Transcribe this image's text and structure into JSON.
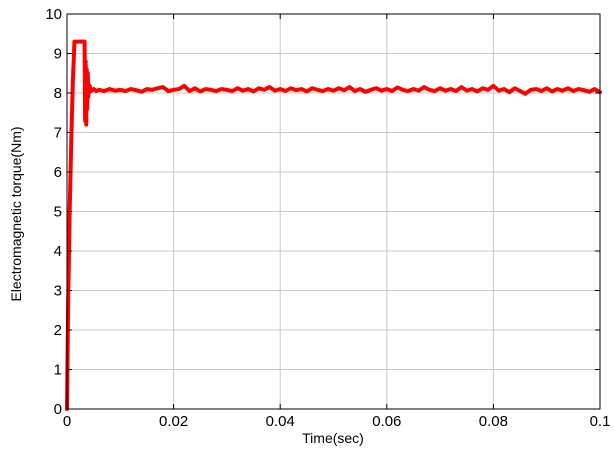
{
  "chart_data": {
    "type": "line",
    "title": "",
    "xlabel": "Time(sec)",
    "ylabel": "Electromagnetic torque(Nm)",
    "xlim": [
      0,
      0.1
    ],
    "ylim": [
      0,
      10
    ],
    "xticks": [
      0,
      0.02,
      0.04,
      0.06,
      0.08,
      0.1
    ],
    "xtick_labels": [
      "0",
      "0.02",
      "0.04",
      "0.06",
      "0.08",
      "0.1"
    ],
    "yticks": [
      0,
      1,
      2,
      3,
      4,
      5,
      6,
      7,
      8,
      9,
      10
    ],
    "ytick_labels": [
      "0",
      "1",
      "2",
      "3",
      "4",
      "5",
      "6",
      "7",
      "8",
      "9",
      "10"
    ],
    "grid": true,
    "series": [
      {
        "color": "#ff0000",
        "x": [
          0,
          0.0002,
          0.0005,
          0.0008,
          0.0011,
          0.0014,
          0.0017,
          0.0019,
          0.0021,
          0.0024,
          0.0028,
          0.0031,
          0.0033,
          0.0034,
          0.0035,
          0.0036,
          0.0037,
          0.0038,
          0.0039,
          0.004,
          0.0042,
          0.0045,
          0.005,
          0.0055,
          0.006,
          0.007,
          0.008,
          0.009,
          0.01,
          0.011,
          0.012,
          0.013,
          0.014,
          0.015,
          0.016,
          0.017,
          0.018,
          0.019,
          0.02,
          0.021,
          0.022,
          0.023,
          0.024,
          0.025,
          0.026,
          0.027,
          0.028,
          0.029,
          0.03,
          0.031,
          0.032,
          0.033,
          0.034,
          0.035,
          0.036,
          0.037,
          0.038,
          0.039,
          0.04,
          0.041,
          0.042,
          0.043,
          0.044,
          0.045,
          0.046,
          0.047,
          0.048,
          0.049,
          0.05,
          0.051,
          0.052,
          0.053,
          0.054,
          0.055,
          0.056,
          0.057,
          0.058,
          0.059,
          0.06,
          0.061,
          0.062,
          0.063,
          0.064,
          0.065,
          0.066,
          0.067,
          0.068,
          0.069,
          0.07,
          0.071,
          0.072,
          0.073,
          0.074,
          0.075,
          0.076,
          0.077,
          0.078,
          0.079,
          0.08,
          0.081,
          0.082,
          0.083,
          0.084,
          0.085,
          0.086,
          0.087,
          0.088,
          0.089,
          0.09,
          0.091,
          0.092,
          0.093,
          0.094,
          0.095,
          0.096,
          0.097,
          0.098,
          0.099,
          0.1
        ],
        "y": [
          0,
          2.5,
          5.0,
          6.8,
          8.3,
          9.3,
          9.3,
          9.3,
          9.3,
          9.3,
          9.3,
          9.3,
          9.3,
          7.3,
          8.8,
          7.2,
          8.6,
          7.6,
          8.5,
          7.9,
          8.2,
          8.05,
          8.1,
          8.05,
          8.08,
          8.05,
          8.1,
          8.06,
          8.08,
          8.05,
          8.1,
          8.07,
          8.03,
          8.1,
          8.08,
          8.12,
          8.15,
          8.05,
          8.08,
          8.1,
          8.18,
          8.05,
          8.12,
          8.04,
          8.1,
          8.08,
          8.05,
          8.1,
          8.08,
          8.05,
          8.12,
          8.06,
          8.1,
          8.04,
          8.12,
          8.08,
          8.15,
          8.06,
          8.1,
          8.05,
          8.12,
          8.07,
          8.1,
          8.04,
          8.12,
          8.08,
          8.05,
          8.1,
          8.06,
          8.12,
          8.07,
          8.15,
          8.05,
          8.1,
          8.03,
          8.08,
          8.12,
          8.06,
          8.1,
          8.05,
          8.14,
          8.08,
          8.05,
          8.1,
          8.06,
          8.15,
          8.08,
          8.05,
          8.12,
          8.06,
          8.1,
          8.05,
          8.15,
          8.06,
          8.1,
          8.04,
          8.12,
          8.08,
          8.18,
          8.06,
          8.1,
          8.02,
          8.12,
          8.05,
          7.98,
          8.08,
          8.1,
          8.05,
          8.12,
          8.04,
          8.1,
          8.06,
          8.12,
          8.05,
          8.1,
          8.07,
          8.03,
          8.1,
          8.02
        ]
      }
    ]
  }
}
